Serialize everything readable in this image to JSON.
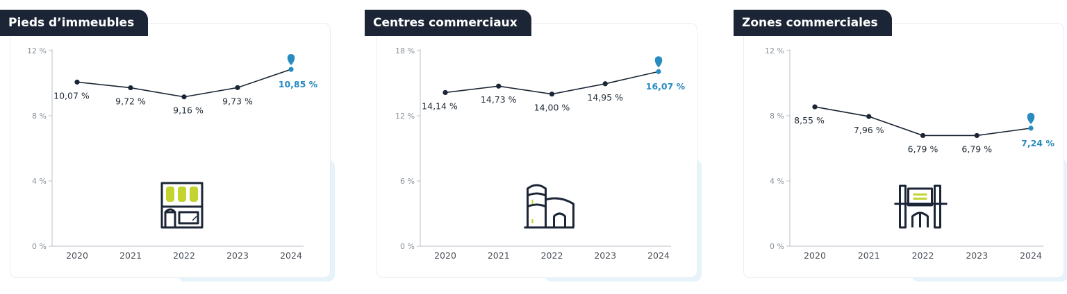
{
  "chart_data": [
    {
      "type": "line",
      "title": "Pieds d’immeubles",
      "categories": [
        "2020",
        "2021",
        "2022",
        "2023",
        "2024"
      ],
      "yticks": [
        "0 %",
        "4 %",
        "8 %",
        "12 %"
      ],
      "ylim": [
        0,
        12
      ],
      "values": [
        10.07,
        9.72,
        9.16,
        9.73,
        10.85
      ],
      "labels": [
        "10,07 %",
        "9,72 %",
        "9,16 %",
        "9,73 %",
        "10,85 %"
      ],
      "icon": "shop-front-icon"
    },
    {
      "type": "line",
      "title": "Centres commerciaux",
      "categories": [
        "2020",
        "2021",
        "2022",
        "2023",
        "2024"
      ],
      "yticks": [
        "0 %",
        "6 %",
        "12 %",
        "18 %"
      ],
      "ylim": [
        0,
        18
      ],
      "values": [
        14.14,
        14.73,
        14.0,
        14.95,
        16.07
      ],
      "labels": [
        "14,14 %",
        "14,73 %",
        "14,00 %",
        "14,95 %",
        "16,07 %"
      ],
      "icon": "shopping-mall-icon"
    },
    {
      "type": "line",
      "title": "Zones commerciales",
      "categories": [
        "2020",
        "2021",
        "2022",
        "2023",
        "2024"
      ],
      "yticks": [
        "0 %",
        "4 %",
        "8 %",
        "12 %"
      ],
      "ylim": [
        0,
        12
      ],
      "values": [
        8.55,
        7.96,
        6.79,
        6.79,
        7.24
      ],
      "labels": [
        "8,55 %",
        "7,96 %",
        "6,79 %",
        "6,79 %",
        "7,24 %"
      ],
      "icon": "retail-park-icon"
    }
  ],
  "colors": {
    "line": "#1b2535",
    "highlight": "#2a8bc0",
    "icon_accent": "#c3d32f",
    "axis": "#b9c0c8",
    "tick_text": "#8a9198",
    "tab_bg": "#1b2535"
  }
}
